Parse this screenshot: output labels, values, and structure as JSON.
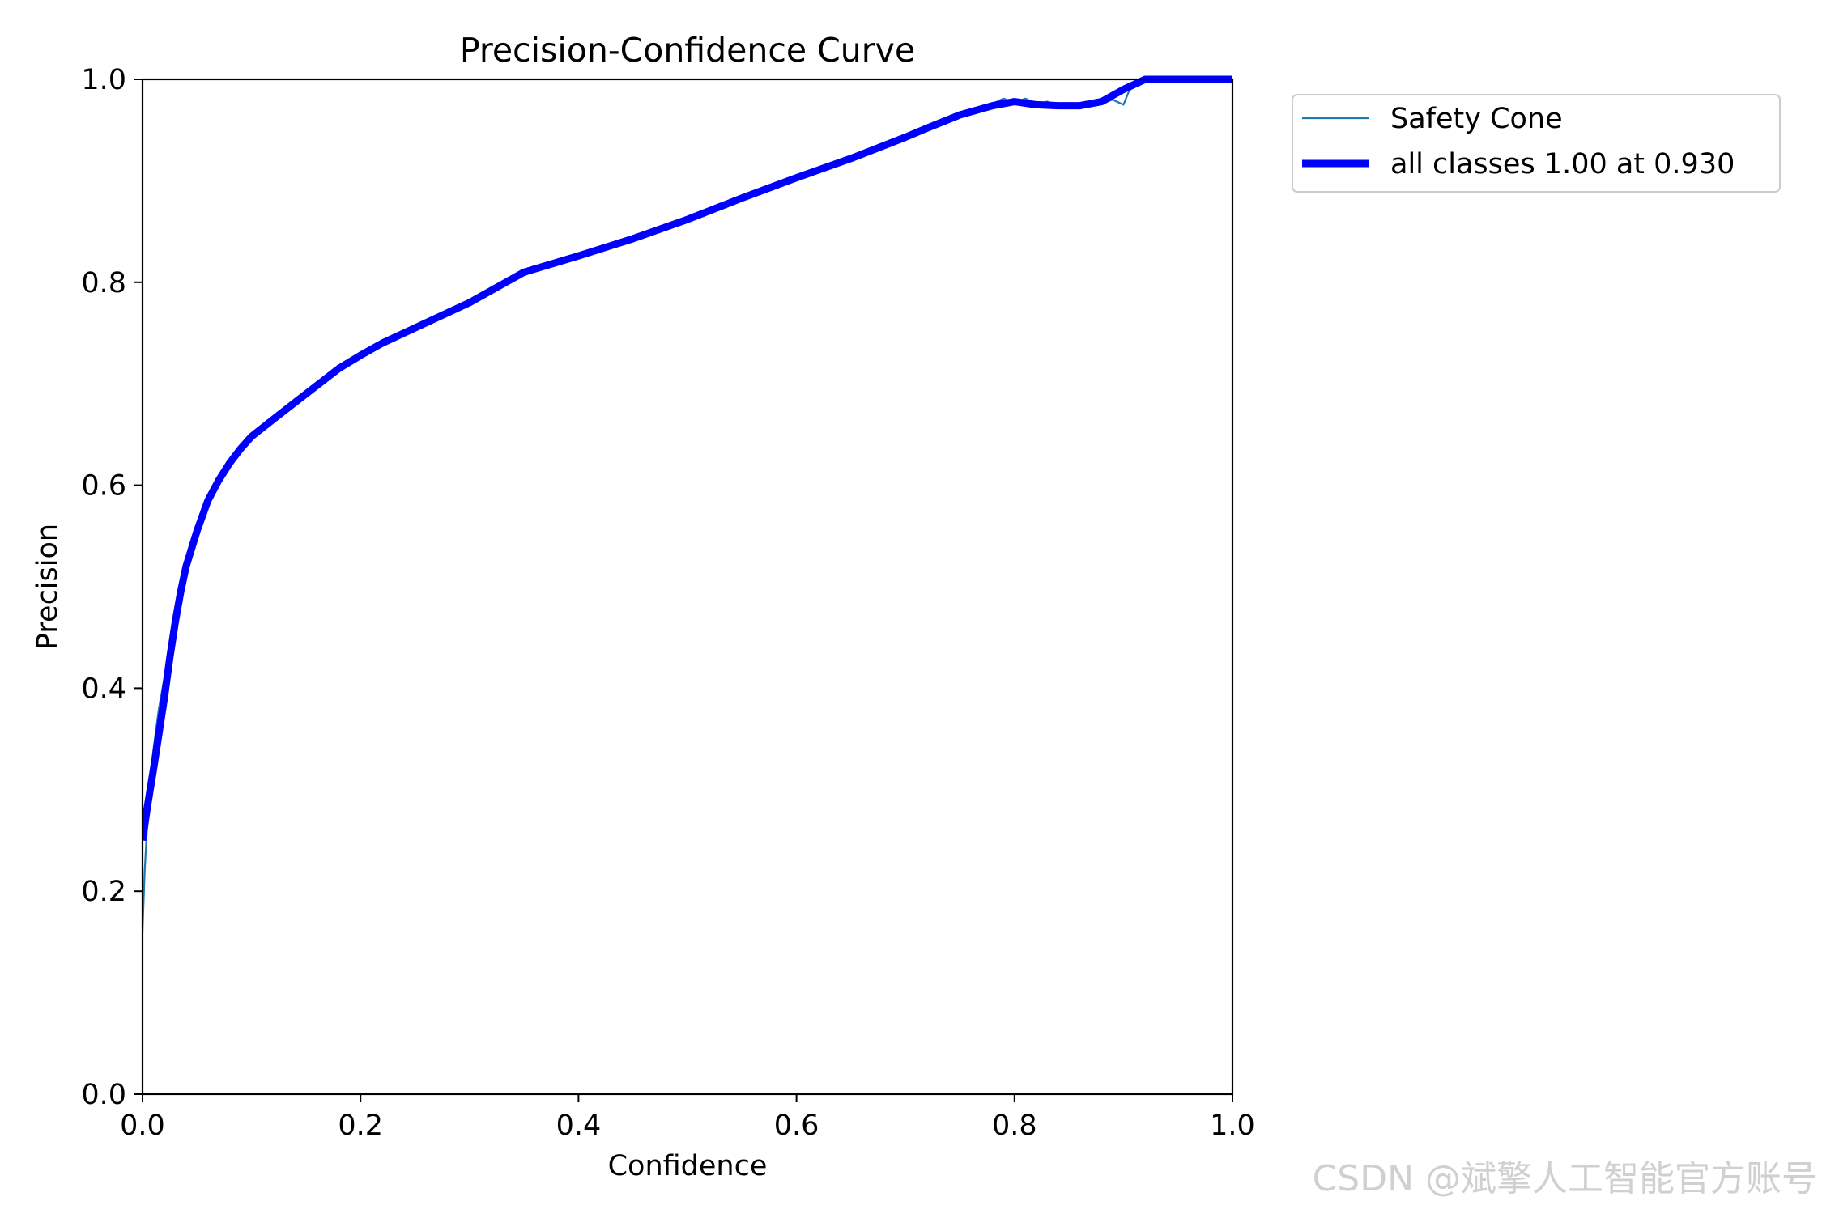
{
  "chart_data": {
    "type": "line",
    "title": "Precision-Confidence Curve",
    "xlabel": "Confidence",
    "ylabel": "Precision",
    "xlim": [
      0,
      1
    ],
    "ylim": [
      0,
      1
    ],
    "xticks": [
      "0.0",
      "0.2",
      "0.4",
      "0.6",
      "0.8",
      "1.0"
    ],
    "yticks": [
      "0.0",
      "0.2",
      "0.4",
      "0.6",
      "0.8",
      "1.0"
    ],
    "grid": false,
    "legend_position": "outside-top-right",
    "series": [
      {
        "name": "Safety Cone",
        "color": "#1f77b4",
        "style": "thin",
        "x": [
          0.0,
          0.002,
          0.004,
          0.007,
          0.01,
          0.015,
          0.02,
          0.025,
          0.03,
          0.035,
          0.04,
          0.05,
          0.06,
          0.07,
          0.08,
          0.09,
          0.1,
          0.12,
          0.15,
          0.18,
          0.2,
          0.22,
          0.25,
          0.3,
          0.35,
          0.4,
          0.45,
          0.5,
          0.55,
          0.6,
          0.65,
          0.7,
          0.72,
          0.75,
          0.78,
          0.79,
          0.8,
          0.81,
          0.82,
          0.83,
          0.84,
          0.85,
          0.86,
          0.87,
          0.88,
          0.89,
          0.9,
          0.905,
          0.91,
          0.92,
          0.93,
          0.95,
          1.0
        ],
        "y": [
          0.16,
          0.22,
          0.26,
          0.3,
          0.34,
          0.38,
          0.41,
          0.44,
          0.47,
          0.495,
          0.52,
          0.555,
          0.585,
          0.605,
          0.622,
          0.636,
          0.648,
          0.665,
          0.69,
          0.715,
          0.728,
          0.74,
          0.755,
          0.78,
          0.81,
          0.826,
          0.843,
          0.862,
          0.883,
          0.903,
          0.922,
          0.943,
          0.952,
          0.965,
          0.976,
          0.981,
          0.977,
          0.981,
          0.976,
          0.978,
          0.975,
          0.975,
          0.973,
          0.976,
          0.976,
          0.98,
          0.975,
          0.988,
          0.995,
          1.0,
          1.0,
          1.0,
          1.0
        ]
      },
      {
        "name": "all classes 1.00 at 0.930",
        "color": "#0000ff",
        "style": "thick",
        "x": [
          0.0,
          0.002,
          0.004,
          0.007,
          0.01,
          0.015,
          0.02,
          0.025,
          0.03,
          0.035,
          0.04,
          0.05,
          0.06,
          0.07,
          0.08,
          0.09,
          0.1,
          0.12,
          0.15,
          0.18,
          0.2,
          0.22,
          0.25,
          0.3,
          0.35,
          0.4,
          0.45,
          0.5,
          0.55,
          0.6,
          0.65,
          0.7,
          0.72,
          0.75,
          0.78,
          0.8,
          0.82,
          0.84,
          0.86,
          0.88,
          0.9,
          0.92,
          0.93,
          0.95,
          1.0
        ],
        "y": [
          0.25,
          0.265,
          0.28,
          0.3,
          0.32,
          0.355,
          0.39,
          0.43,
          0.465,
          0.495,
          0.52,
          0.555,
          0.585,
          0.605,
          0.622,
          0.636,
          0.648,
          0.665,
          0.69,
          0.715,
          0.728,
          0.74,
          0.755,
          0.78,
          0.81,
          0.826,
          0.843,
          0.862,
          0.883,
          0.903,
          0.922,
          0.943,
          0.952,
          0.965,
          0.974,
          0.978,
          0.975,
          0.974,
          0.974,
          0.978,
          0.99,
          1.0,
          1.0,
          1.0,
          1.0
        ]
      }
    ]
  },
  "watermark": "CSDN @斌擎人工智能官方账号"
}
